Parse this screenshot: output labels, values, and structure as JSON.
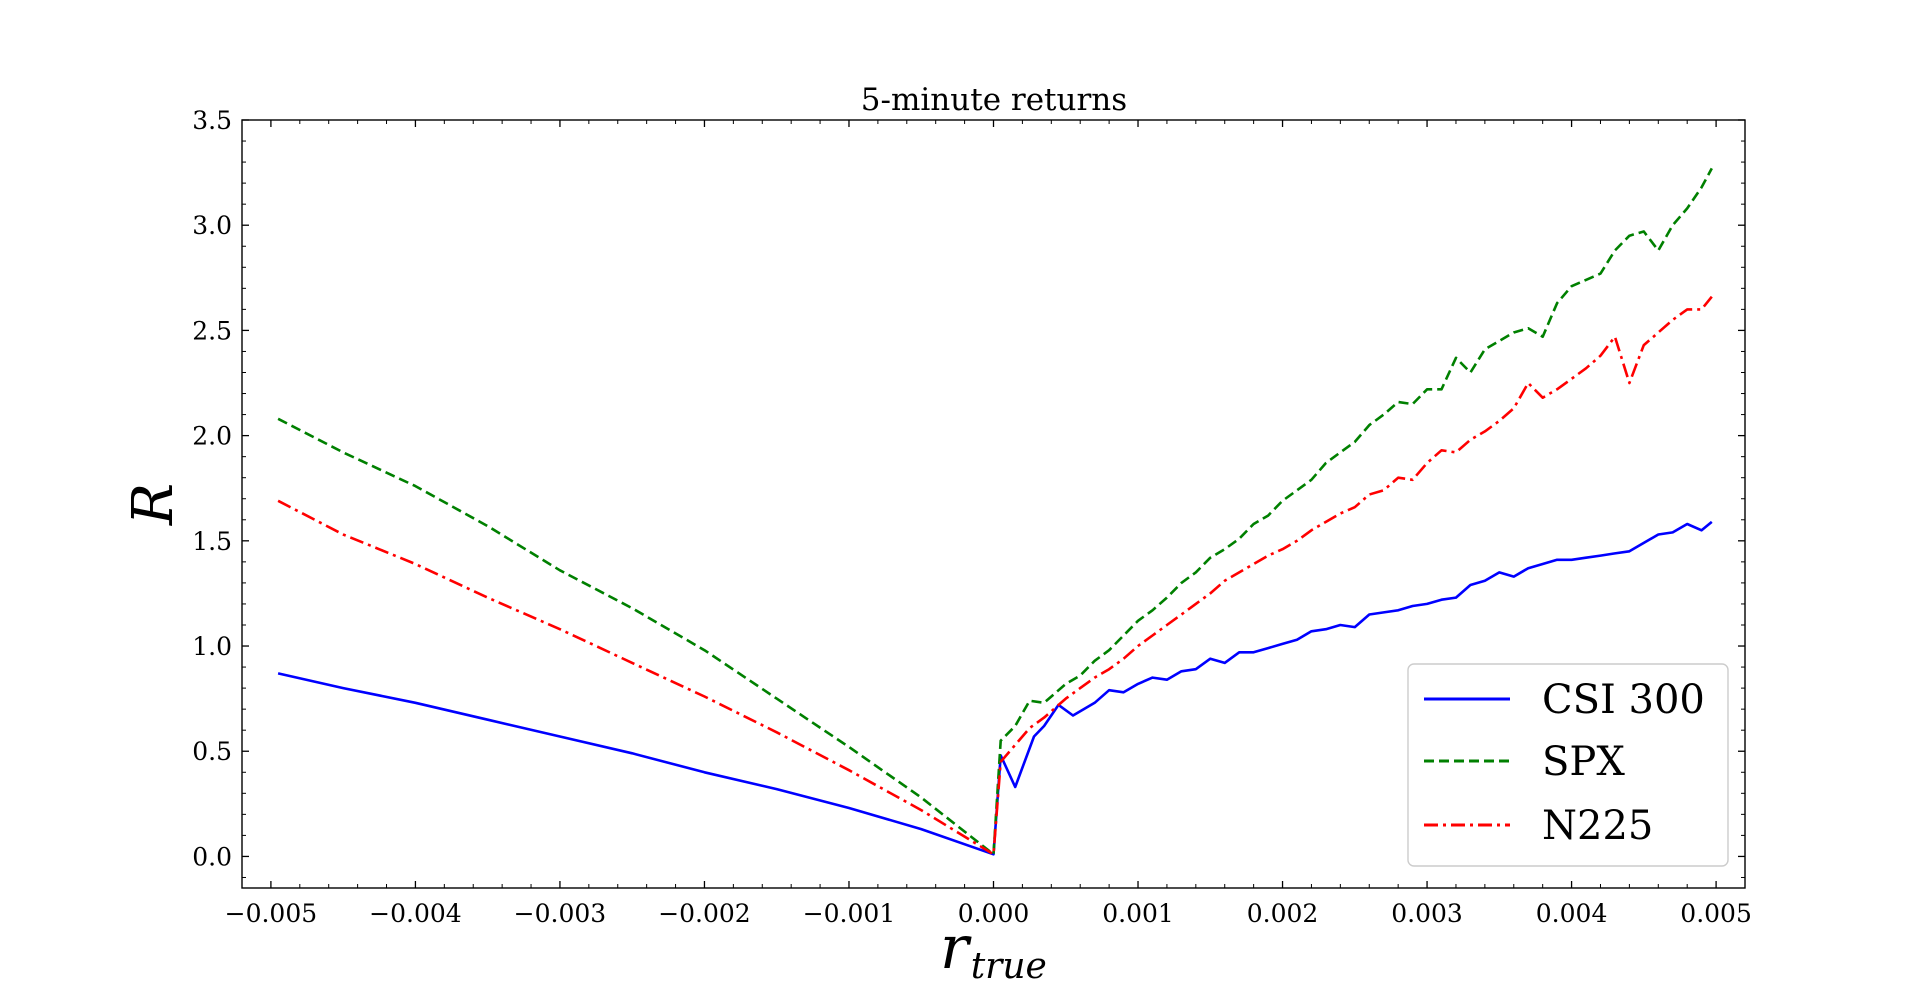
{
  "chart_data": {
    "type": "line",
    "title": "5-minute returns",
    "xlabel": "r",
    "xlabel_subscript": "true",
    "ylabel": "R",
    "xlim": [
      -0.0052,
      0.0052
    ],
    "ylim": [
      -0.15,
      3.5
    ],
    "x_ticks": [
      -0.005,
      -0.004,
      -0.003,
      -0.002,
      -0.001,
      0.0,
      0.001,
      0.002,
      0.003,
      0.004,
      0.005
    ],
    "x_tick_labels": [
      "−0.005",
      "−0.004",
      "−0.003",
      "−0.002",
      "−0.001",
      "0.000",
      "0.001",
      "0.002",
      "0.003",
      "0.004",
      "0.005"
    ],
    "y_ticks": [
      0.0,
      0.5,
      1.0,
      1.5,
      2.0,
      2.5,
      3.0,
      3.5
    ],
    "y_tick_labels": [
      "0.0",
      "0.5",
      "1.0",
      "1.5",
      "2.0",
      "2.5",
      "3.0",
      "3.5"
    ],
    "grid": false,
    "legend_position": "lower-right",
    "series": [
      {
        "name": "CSI 300",
        "color": "#0000ff",
        "style": "solid",
        "points": [
          [
            -0.00495,
            0.87
          ],
          [
            -0.0045,
            0.8
          ],
          [
            -0.004,
            0.73
          ],
          [
            -0.0035,
            0.65
          ],
          [
            -0.003,
            0.57
          ],
          [
            -0.0025,
            0.49
          ],
          [
            -0.002,
            0.4
          ],
          [
            -0.0015,
            0.32
          ],
          [
            -0.001,
            0.23
          ],
          [
            -0.0005,
            0.13
          ],
          [
            0.0,
            0.01
          ],
          [
            5e-05,
            0.48
          ],
          [
            0.00015,
            0.33
          ],
          [
            0.00028,
            0.57
          ],
          [
            0.00035,
            0.62
          ],
          [
            0.00045,
            0.72
          ],
          [
            0.00055,
            0.67
          ],
          [
            0.0007,
            0.73
          ],
          [
            0.0008,
            0.79
          ],
          [
            0.0009,
            0.78
          ],
          [
            0.001,
            0.82
          ],
          [
            0.0011,
            0.85
          ],
          [
            0.0012,
            0.84
          ],
          [
            0.0013,
            0.88
          ],
          [
            0.0014,
            0.89
          ],
          [
            0.0015,
            0.94
          ],
          [
            0.0016,
            0.92
          ],
          [
            0.0017,
            0.97
          ],
          [
            0.0018,
            0.97
          ],
          [
            0.0019,
            0.99
          ],
          [
            0.002,
            1.01
          ],
          [
            0.0021,
            1.03
          ],
          [
            0.0022,
            1.07
          ],
          [
            0.0023,
            1.08
          ],
          [
            0.0024,
            1.1
          ],
          [
            0.0025,
            1.09
          ],
          [
            0.0026,
            1.15
          ],
          [
            0.0027,
            1.16
          ],
          [
            0.0028,
            1.17
          ],
          [
            0.0029,
            1.19
          ],
          [
            0.003,
            1.2
          ],
          [
            0.0031,
            1.22
          ],
          [
            0.0032,
            1.23
          ],
          [
            0.0033,
            1.29
          ],
          [
            0.0034,
            1.31
          ],
          [
            0.0035,
            1.35
          ],
          [
            0.0036,
            1.33
          ],
          [
            0.0037,
            1.37
          ],
          [
            0.0038,
            1.39
          ],
          [
            0.0039,
            1.41
          ],
          [
            0.004,
            1.41
          ],
          [
            0.0041,
            1.42
          ],
          [
            0.0042,
            1.43
          ],
          [
            0.0043,
            1.44
          ],
          [
            0.0044,
            1.45
          ],
          [
            0.0045,
            1.49
          ],
          [
            0.0046,
            1.53
          ],
          [
            0.0047,
            1.54
          ],
          [
            0.0048,
            1.58
          ],
          [
            0.0049,
            1.55
          ],
          [
            0.00497,
            1.59
          ]
        ]
      },
      {
        "name": "SPX",
        "color": "#008000",
        "style": "dashed",
        "points": [
          [
            -0.00495,
            2.08
          ],
          [
            -0.0045,
            1.92
          ],
          [
            -0.004,
            1.76
          ],
          [
            -0.0035,
            1.57
          ],
          [
            -0.003,
            1.36
          ],
          [
            -0.0025,
            1.18
          ],
          [
            -0.002,
            0.98
          ],
          [
            -0.0015,
            0.75
          ],
          [
            -0.001,
            0.52
          ],
          [
            -0.0005,
            0.28
          ],
          [
            0.0,
            0.01
          ],
          [
            5e-05,
            0.55
          ],
          [
            0.00015,
            0.62
          ],
          [
            0.00025,
            0.74
          ],
          [
            0.00035,
            0.73
          ],
          [
            0.0005,
            0.82
          ],
          [
            0.0006,
            0.86
          ],
          [
            0.0007,
            0.93
          ],
          [
            0.0008,
            0.98
          ],
          [
            0.0009,
            1.05
          ],
          [
            0.001,
            1.12
          ],
          [
            0.0011,
            1.17
          ],
          [
            0.0012,
            1.23
          ],
          [
            0.0013,
            1.3
          ],
          [
            0.0014,
            1.35
          ],
          [
            0.0015,
            1.42
          ],
          [
            0.0016,
            1.46
          ],
          [
            0.0017,
            1.51
          ],
          [
            0.0018,
            1.58
          ],
          [
            0.0019,
            1.62
          ],
          [
            0.002,
            1.69
          ],
          [
            0.0021,
            1.74
          ],
          [
            0.0022,
            1.79
          ],
          [
            0.0023,
            1.87
          ],
          [
            0.0024,
            1.92
          ],
          [
            0.0025,
            1.97
          ],
          [
            0.0026,
            2.05
          ],
          [
            0.0027,
            2.1
          ],
          [
            0.0028,
            2.16
          ],
          [
            0.0029,
            2.15
          ],
          [
            0.003,
            2.22
          ],
          [
            0.0031,
            2.22
          ],
          [
            0.0032,
            2.37
          ],
          [
            0.0033,
            2.3
          ],
          [
            0.0034,
            2.41
          ],
          [
            0.0035,
            2.45
          ],
          [
            0.0036,
            2.49
          ],
          [
            0.0037,
            2.51
          ],
          [
            0.0038,
            2.47
          ],
          [
            0.0039,
            2.63
          ],
          [
            0.004,
            2.71
          ],
          [
            0.0041,
            2.74
          ],
          [
            0.0042,
            2.77
          ],
          [
            0.0043,
            2.88
          ],
          [
            0.0044,
            2.95
          ],
          [
            0.0045,
            2.97
          ],
          [
            0.0046,
            2.88
          ],
          [
            0.0047,
            3.0
          ],
          [
            0.0048,
            3.08
          ],
          [
            0.0049,
            3.18
          ],
          [
            0.00497,
            3.27
          ]
        ]
      },
      {
        "name": "N225",
        "color": "#ff0000",
        "style": "dashdot",
        "points": [
          [
            -0.00495,
            1.69
          ],
          [
            -0.0045,
            1.53
          ],
          [
            -0.004,
            1.39
          ],
          [
            -0.0035,
            1.23
          ],
          [
            -0.003,
            1.08
          ],
          [
            -0.0025,
            0.92
          ],
          [
            -0.002,
            0.76
          ],
          [
            -0.0015,
            0.59
          ],
          [
            -0.001,
            0.41
          ],
          [
            -0.0005,
            0.22
          ],
          [
            0.0,
            0.01
          ],
          [
            5e-05,
            0.45
          ],
          [
            0.00015,
            0.53
          ],
          [
            0.00025,
            0.61
          ],
          [
            0.00035,
            0.66
          ],
          [
            0.0005,
            0.75
          ],
          [
            0.0006,
            0.8
          ],
          [
            0.0007,
            0.85
          ],
          [
            0.0008,
            0.89
          ],
          [
            0.0009,
            0.94
          ],
          [
            0.001,
            1.0
          ],
          [
            0.0011,
            1.05
          ],
          [
            0.0012,
            1.1
          ],
          [
            0.0013,
            1.15
          ],
          [
            0.0014,
            1.2
          ],
          [
            0.0015,
            1.25
          ],
          [
            0.0016,
            1.31
          ],
          [
            0.0017,
            1.35
          ],
          [
            0.0018,
            1.39
          ],
          [
            0.0019,
            1.43
          ],
          [
            0.002,
            1.46
          ],
          [
            0.0021,
            1.5
          ],
          [
            0.0022,
            1.55
          ],
          [
            0.0023,
            1.59
          ],
          [
            0.0024,
            1.63
          ],
          [
            0.0025,
            1.66
          ],
          [
            0.0026,
            1.72
          ],
          [
            0.0027,
            1.74
          ],
          [
            0.0028,
            1.8
          ],
          [
            0.0029,
            1.79
          ],
          [
            0.003,
            1.87
          ],
          [
            0.0031,
            1.93
          ],
          [
            0.0032,
            1.92
          ],
          [
            0.0033,
            1.98
          ],
          [
            0.0034,
            2.02
          ],
          [
            0.0035,
            2.07
          ],
          [
            0.0036,
            2.13
          ],
          [
            0.0037,
            2.25
          ],
          [
            0.0038,
            2.18
          ],
          [
            0.0039,
            2.22
          ],
          [
            0.004,
            2.27
          ],
          [
            0.0041,
            2.32
          ],
          [
            0.0042,
            2.38
          ],
          [
            0.0043,
            2.47
          ],
          [
            0.0044,
            2.25
          ],
          [
            0.0045,
            2.43
          ],
          [
            0.0046,
            2.49
          ],
          [
            0.0047,
            2.55
          ],
          [
            0.0048,
            2.6
          ],
          [
            0.0049,
            2.6
          ],
          [
            0.00497,
            2.66
          ]
        ]
      }
    ]
  }
}
